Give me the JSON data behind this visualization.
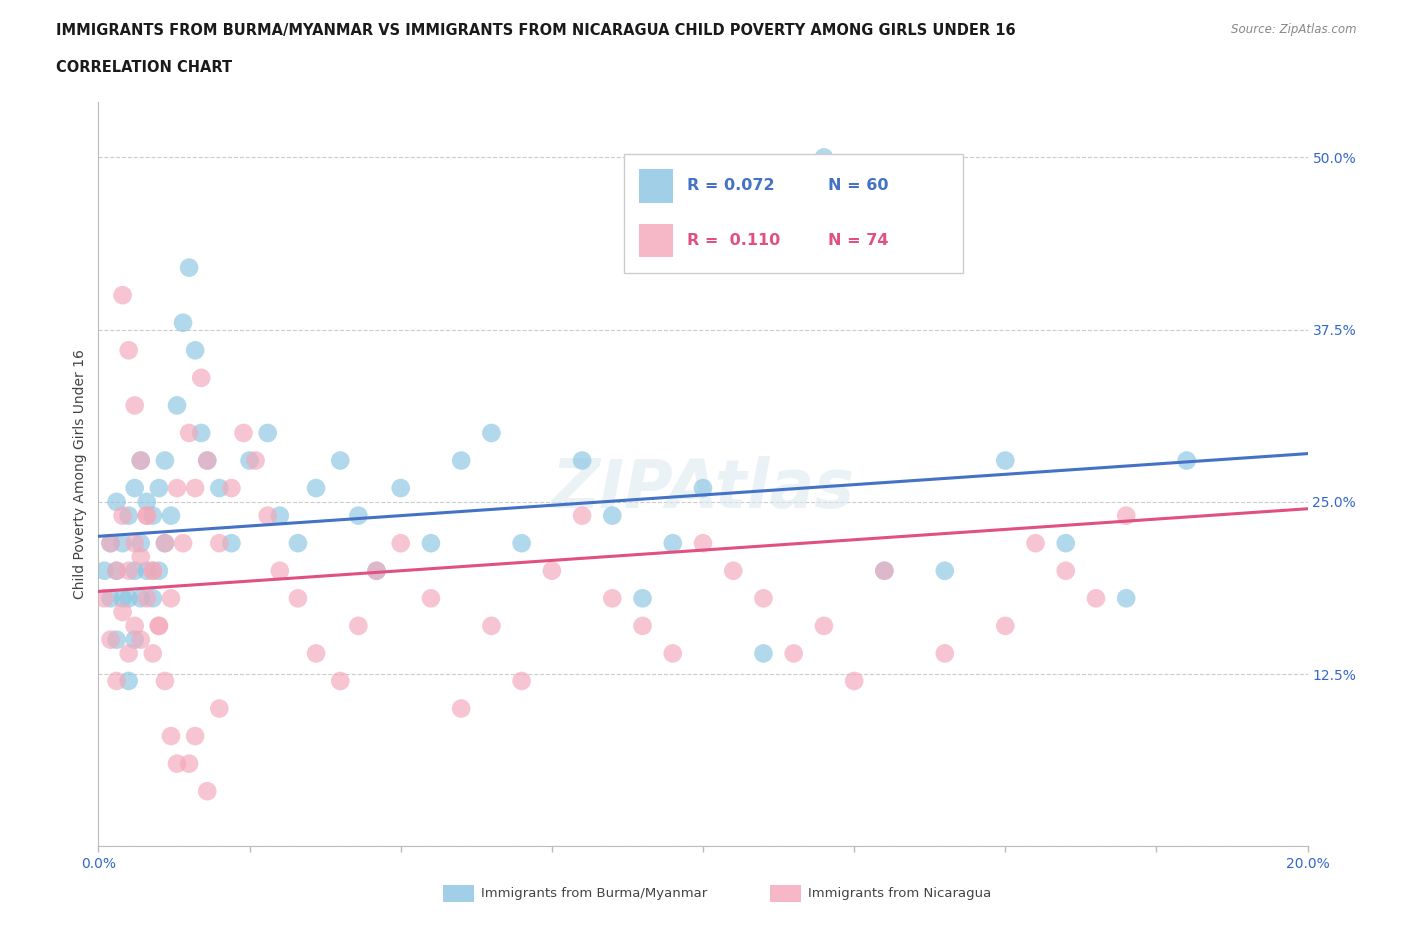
{
  "title_line1": "IMMIGRANTS FROM BURMA/MYANMAR VS IMMIGRANTS FROM NICARAGUA CHILD POVERTY AMONG GIRLS UNDER 16",
  "title_line2": "CORRELATION CHART",
  "source_text": "Source: ZipAtlas.com",
  "ylabel": "Child Poverty Among Girls Under 16",
  "xlim": [
    0.0,
    0.2
  ],
  "ylim": [
    0.0,
    0.54
  ],
  "xticks": [
    0.0,
    0.025,
    0.05,
    0.075,
    0.1,
    0.125,
    0.15,
    0.175,
    0.2
  ],
  "yticks": [
    0.0,
    0.125,
    0.25,
    0.375,
    0.5
  ],
  "ytick_labels": [
    "",
    "12.5%",
    "25.0%",
    "37.5%",
    "50.0%"
  ],
  "grid_color": "#cccccc",
  "background_color": "#ffffff",
  "blue_color": "#89c4e1",
  "pink_color": "#f4a7b9",
  "blue_line_color": "#4472c4",
  "pink_line_color": "#e05080",
  "R_blue": 0.072,
  "N_blue": 60,
  "R_pink": 0.11,
  "N_pink": 74,
  "legend_label_blue": "Immigrants from Burma/Myanmar",
  "legend_label_pink": "Immigrants from Nicaragua",
  "watermark": "ZIPAtlas",
  "blue_x": [
    0.001,
    0.002,
    0.002,
    0.003,
    0.003,
    0.003,
    0.004,
    0.004,
    0.005,
    0.005,
    0.005,
    0.006,
    0.006,
    0.006,
    0.007,
    0.007,
    0.007,
    0.008,
    0.008,
    0.009,
    0.009,
    0.01,
    0.01,
    0.011,
    0.011,
    0.012,
    0.013,
    0.014,
    0.015,
    0.016,
    0.017,
    0.018,
    0.02,
    0.022,
    0.025,
    0.028,
    0.03,
    0.033,
    0.036,
    0.04,
    0.043,
    0.046,
    0.05,
    0.055,
    0.06,
    0.065,
    0.07,
    0.08,
    0.085,
    0.09,
    0.095,
    0.1,
    0.11,
    0.12,
    0.13,
    0.14,
    0.15,
    0.16,
    0.17,
    0.18
  ],
  "blue_y": [
    0.2,
    0.18,
    0.22,
    0.15,
    0.2,
    0.25,
    0.18,
    0.22,
    0.12,
    0.18,
    0.24,
    0.15,
    0.2,
    0.26,
    0.18,
    0.22,
    0.28,
    0.2,
    0.25,
    0.18,
    0.24,
    0.2,
    0.26,
    0.22,
    0.28,
    0.24,
    0.32,
    0.38,
    0.42,
    0.36,
    0.3,
    0.28,
    0.26,
    0.22,
    0.28,
    0.3,
    0.24,
    0.22,
    0.26,
    0.28,
    0.24,
    0.2,
    0.26,
    0.22,
    0.28,
    0.3,
    0.22,
    0.28,
    0.24,
    0.18,
    0.22,
    0.26,
    0.14,
    0.5,
    0.2,
    0.2,
    0.28,
    0.22,
    0.18,
    0.28
  ],
  "pink_x": [
    0.001,
    0.002,
    0.002,
    0.003,
    0.003,
    0.004,
    0.004,
    0.005,
    0.005,
    0.006,
    0.006,
    0.007,
    0.007,
    0.008,
    0.008,
    0.009,
    0.009,
    0.01,
    0.011,
    0.012,
    0.013,
    0.014,
    0.015,
    0.016,
    0.017,
    0.018,
    0.02,
    0.022,
    0.024,
    0.026,
    0.028,
    0.03,
    0.033,
    0.036,
    0.04,
    0.043,
    0.046,
    0.05,
    0.055,
    0.06,
    0.065,
    0.07,
    0.075,
    0.08,
    0.085,
    0.09,
    0.095,
    0.1,
    0.105,
    0.11,
    0.115,
    0.12,
    0.125,
    0.13,
    0.14,
    0.15,
    0.155,
    0.16,
    0.165,
    0.17,
    0.004,
    0.005,
    0.006,
    0.007,
    0.008,
    0.009,
    0.01,
    0.011,
    0.012,
    0.013,
    0.015,
    0.016,
    0.018,
    0.02
  ],
  "pink_y": [
    0.18,
    0.15,
    0.22,
    0.12,
    0.2,
    0.17,
    0.24,
    0.14,
    0.2,
    0.16,
    0.22,
    0.15,
    0.21,
    0.18,
    0.24,
    0.14,
    0.2,
    0.16,
    0.22,
    0.18,
    0.26,
    0.22,
    0.3,
    0.26,
    0.34,
    0.28,
    0.22,
    0.26,
    0.3,
    0.28,
    0.24,
    0.2,
    0.18,
    0.14,
    0.12,
    0.16,
    0.2,
    0.22,
    0.18,
    0.1,
    0.16,
    0.12,
    0.2,
    0.24,
    0.18,
    0.16,
    0.14,
    0.22,
    0.2,
    0.18,
    0.14,
    0.16,
    0.12,
    0.2,
    0.14,
    0.16,
    0.22,
    0.2,
    0.18,
    0.24,
    0.4,
    0.36,
    0.32,
    0.28,
    0.24,
    0.2,
    0.16,
    0.12,
    0.08,
    0.06,
    0.06,
    0.08,
    0.04,
    0.1
  ]
}
